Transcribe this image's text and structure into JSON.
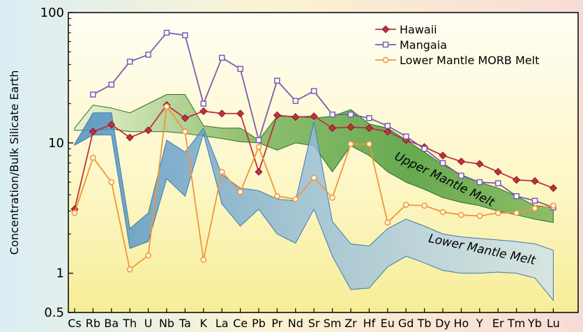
{
  "chart_data": {
    "type": "line",
    "title": "",
    "xlabel": "",
    "ylabel": "Concentration/Bulk Silicate Earth",
    "yscale": "log",
    "ylim": [
      0.5,
      100
    ],
    "yticks": [
      {
        "value": 100,
        "label": "100"
      },
      {
        "value": 10,
        "label": "10"
      },
      {
        "value": 1,
        "label": "1"
      },
      {
        "value": 0.5,
        "label": "0.5"
      }
    ],
    "categories": [
      "Cs",
      "Rb",
      "Ba",
      "Th",
      "U",
      "Nb",
      "Ta",
      "K",
      "La",
      "Ce",
      "Pb",
      "Pr",
      "Nd",
      "Sr",
      "Sm",
      "Zr",
      "Hf",
      "Eu",
      "Gd",
      "Tb",
      "Dy",
      "Ho",
      "Y",
      "Er",
      "Tm",
      "Yb",
      "Lu"
    ],
    "legend_position": "top-right",
    "series": [
      {
        "name": "Hawaii",
        "color": "#c03040",
        "marker": "diamond",
        "values": [
          3.1,
          12.2,
          13.8,
          11.0,
          12.5,
          19.5,
          15.5,
          17.5,
          16.8,
          16.8,
          6.0,
          16.3,
          15.8,
          16.0,
          13.0,
          13.2,
          13.0,
          12.2,
          10.5,
          9.3,
          8.0,
          7.2,
          6.9,
          6.0,
          5.2,
          5.1,
          4.5
        ]
      },
      {
        "name": "Mangaia",
        "color": "#7a5cb0",
        "marker": "square",
        "values": [
          null,
          23.5,
          28.0,
          42.0,
          47.5,
          70.0,
          67.0,
          20.0,
          45.0,
          37.0,
          10.5,
          30.0,
          21.0,
          25.0,
          16.5,
          16.5,
          15.5,
          13.5,
          11.2,
          9.0,
          7.0,
          5.6,
          5.0,
          4.9,
          3.9,
          3.6,
          3.2
        ]
      },
      {
        "name": "Lower Mantle MORB Melt",
        "color": "#f0963a",
        "marker": "circle",
        "values": [
          2.9,
          7.7,
          5.0,
          1.07,
          1.37,
          19.0,
          12.2,
          1.27,
          6.0,
          4.2,
          9.3,
          3.9,
          3.7,
          5.4,
          3.8,
          9.8,
          9.8,
          2.45,
          3.35,
          3.3,
          2.95,
          2.8,
          2.75,
          2.9,
          2.9,
          3.15,
          3.3
        ]
      }
    ],
    "bands": [
      {
        "label": "Upper Mantle Melt",
        "fill": "#3c8c2c",
        "upper": [
          13.0,
          19.5,
          18.5,
          17.0,
          20.0,
          23.5,
          23.5,
          13.5,
          13.0,
          13.0,
          10.5,
          16.0,
          16.0,
          15.5,
          16.0,
          18.0,
          14.0,
          13.0,
          10.5,
          8.5,
          6.8,
          5.7,
          5.0,
          4.5,
          3.9,
          3.3,
          3.2
        ],
        "lower": [
          12.5,
          12.5,
          12.8,
          12.2,
          12.2,
          12.2,
          11.8,
          11.3,
          10.8,
          10.2,
          10.0,
          8.8,
          10.0,
          9.5,
          6.0,
          9.5,
          8.0,
          6.0,
          5.0,
          4.4,
          3.8,
          3.5,
          3.3,
          3.0,
          2.8,
          2.6,
          2.45
        ]
      },
      {
        "label": "Lower Mantle Melt",
        "fill": "#4a8cc0",
        "upper": [
          9.8,
          17.0,
          17.0,
          2.2,
          2.9,
          10.5,
          8.5,
          13.0,
          5.7,
          4.5,
          4.3,
          3.7,
          3.6,
          14.5,
          2.5,
          1.68,
          1.62,
          2.2,
          2.6,
          2.3,
          2.0,
          1.9,
          1.85,
          1.8,
          1.75,
          1.68,
          1.5
        ],
        "lower": [
          9.6,
          11.5,
          11.5,
          1.55,
          1.75,
          5.3,
          3.9,
          11.8,
          3.4,
          2.3,
          3.1,
          2.0,
          1.7,
          3.1,
          1.35,
          0.75,
          0.77,
          1.12,
          1.35,
          1.2,
          1.05,
          1.0,
          1.0,
          1.02,
          1.0,
          0.92,
          0.62
        ]
      }
    ]
  }
}
